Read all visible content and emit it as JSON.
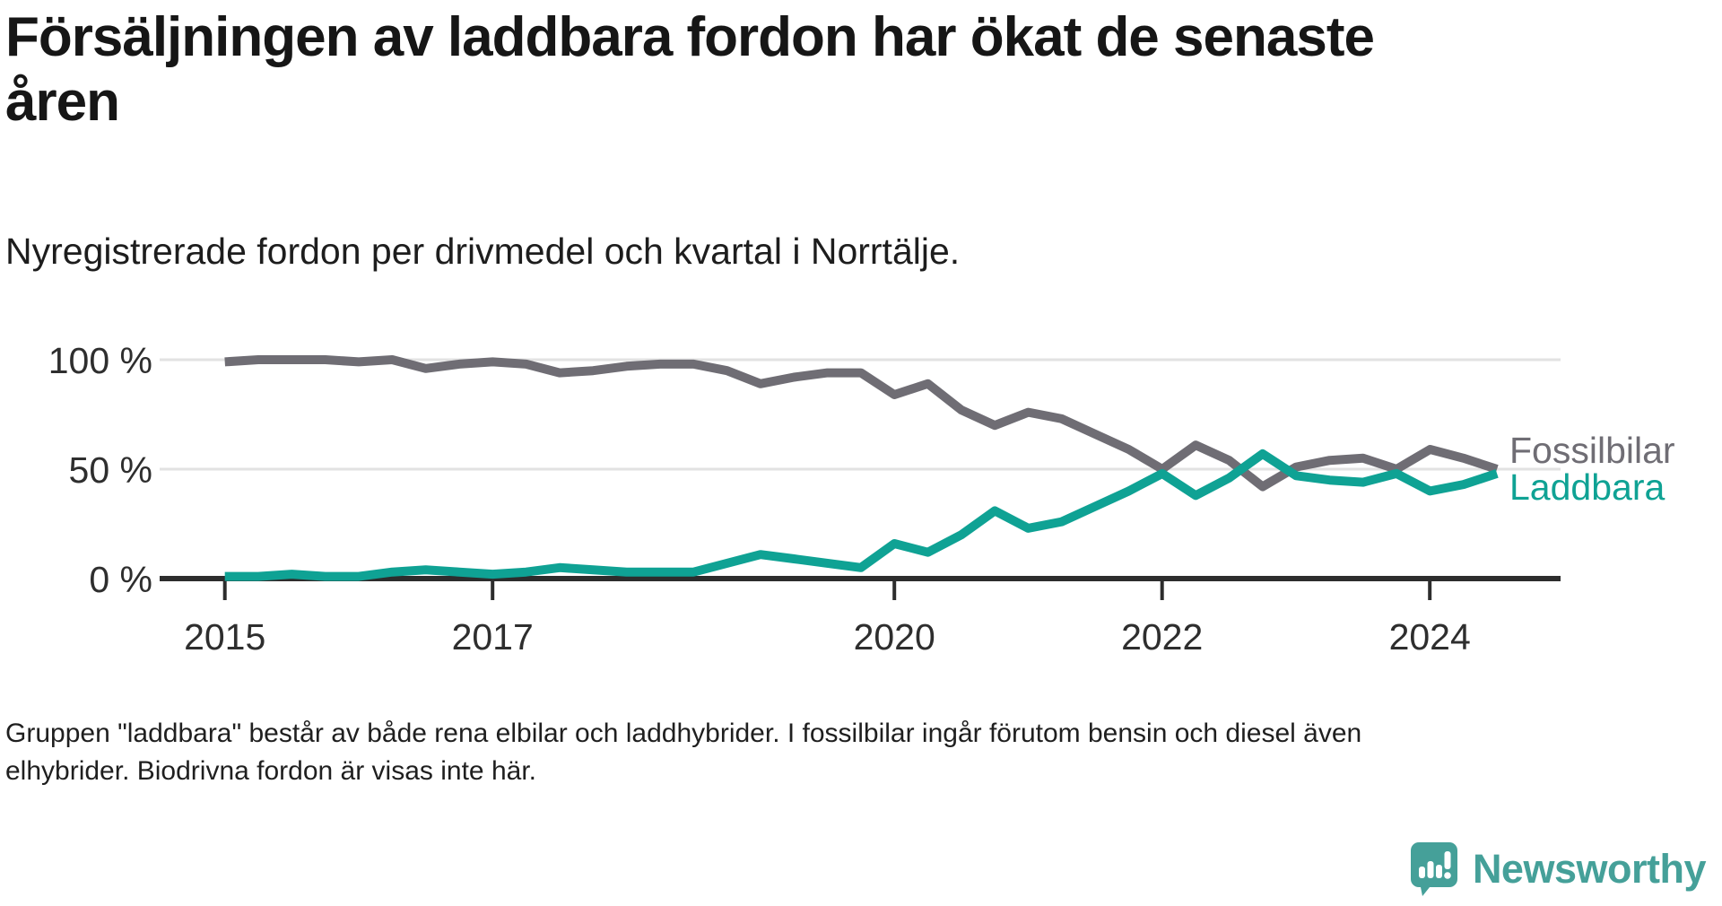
{
  "title": "Försäljningen av laddbara fordon har ökat de senaste\nåren",
  "subtitle": "Nyregistrerade fordon per drivmedel och kvartal i Norrtälje.",
  "footnote": "Gruppen \"laddbara\" består av både rena elbilar och laddhybrider. I fossilbilar ingår förutom bensin och diesel även\nelhybrider. Biodrivna fordon är visas inte här.",
  "logo": {
    "name": "Newsworthy",
    "color": "#45a099"
  },
  "chart_data": {
    "type": "line",
    "title": "Försäljningen av laddbara fordon har ökat de senaste åren",
    "subtitle": "Nyregistrerade fordon per drivmedel och kvartal i Norrtälje.",
    "x_unit": "quarter",
    "x_start": "2015 Q1",
    "x_end": "2024 Q3",
    "points_per_year": 4,
    "x_tick_labels": [
      "2015",
      "2017",
      "2020",
      "2022",
      "2024"
    ],
    "y_tick_labels": [
      "100 %",
      "50 %",
      "0 %"
    ],
    "y_tick_values": [
      100,
      50,
      0
    ],
    "ylim": [
      0,
      100
    ],
    "grid": "horizontal",
    "legend_position": "right-of-line-ends",
    "series": [
      {
        "id": "fossil",
        "name": "Fossilbilar",
        "color": "#6f6d74",
        "values": [
          99,
          100,
          100,
          100,
          99,
          100,
          96,
          98,
          99,
          98,
          94,
          95,
          97,
          98,
          98,
          95,
          89,
          92,
          94,
          94,
          84,
          89,
          77,
          70,
          76,
          73,
          66,
          59,
          50,
          61,
          54,
          42,
          51,
          54,
          55,
          50,
          59,
          55,
          50
        ]
      },
      {
        "id": "laddbara",
        "name": "Laddbara",
        "color": "#0fa294",
        "values": [
          1,
          1,
          2,
          1,
          1,
          3,
          4,
          3,
          2,
          3,
          5,
          4,
          3,
          3,
          3,
          7,
          11,
          9,
          7,
          5,
          16,
          12,
          20,
          31,
          23,
          26,
          33,
          40,
          48,
          38,
          46,
          57,
          47,
          45,
          44,
          48,
          40,
          43,
          48
        ]
      }
    ]
  }
}
